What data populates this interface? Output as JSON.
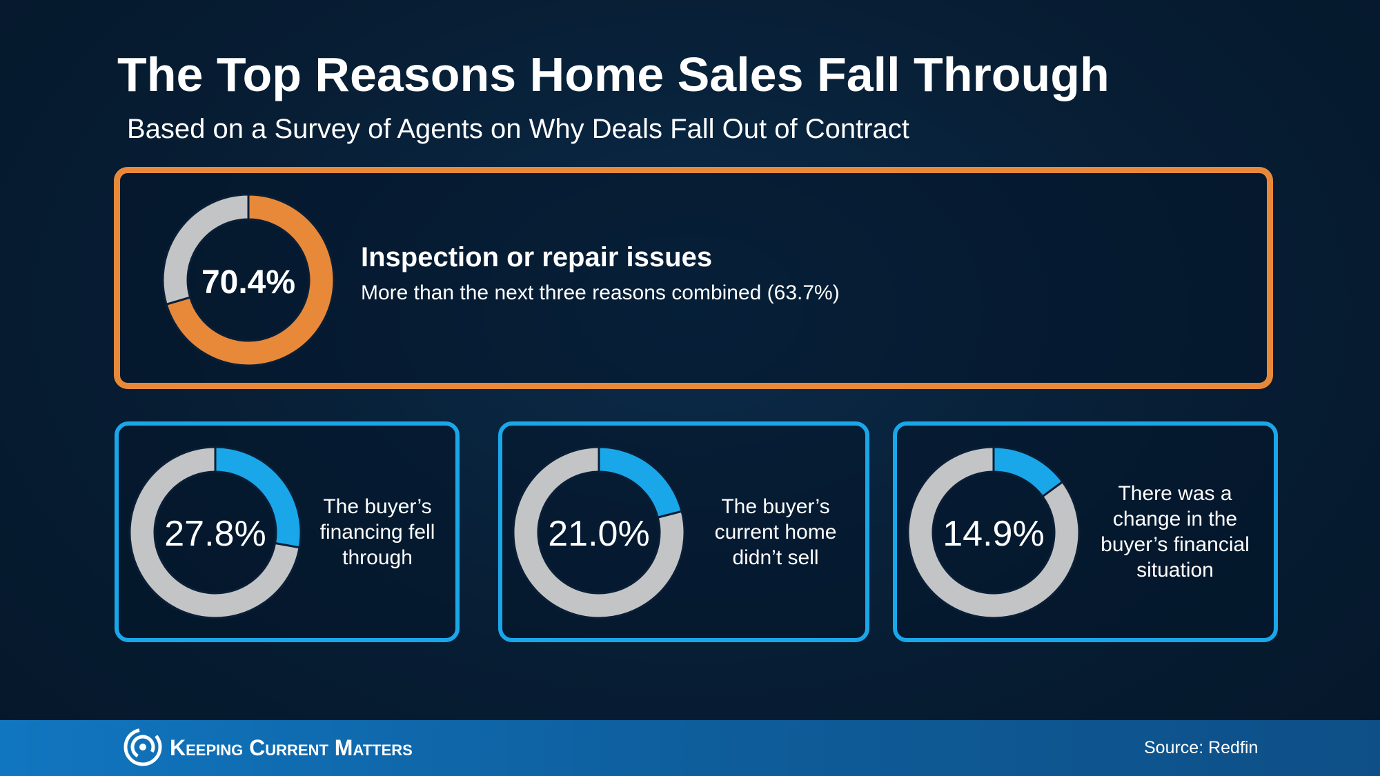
{
  "header": {
    "title": "The Top Reasons Home Sales Fall Through",
    "subtitle": "Based on a Survey of Agents on Why Deals Fall Out of Contract"
  },
  "colors": {
    "highlight": "#e8893a",
    "accent": "#1aa7ea",
    "remainder": "#c3c4c6",
    "background": "#071d33"
  },
  "chart_data": [
    {
      "type": "pie",
      "label": "Inspection or repair issues",
      "value_text": "70.4%",
      "value": 70.4,
      "note": "More than the next three reasons combined (63.7%)",
      "color": "#e8893a"
    },
    {
      "type": "pie",
      "label": "The buyer's financing fell through",
      "value_text": "27.8%",
      "value": 27.8,
      "color": "#1aa7ea"
    },
    {
      "type": "pie",
      "label": "The buyer's current home didn't sell",
      "value_text": "21.0%",
      "value": 21.0,
      "color": "#1aa7ea"
    },
    {
      "type": "pie",
      "label": "There was a change in the buyer's financial situation",
      "value_text": "14.9%",
      "value": 14.9,
      "color": "#1aa7ea"
    }
  ],
  "labels": {
    "card1": "The buyer’s financing fell through",
    "card2": "The buyer’s current home didn’t sell",
    "card3": "There was a change in the buyer’s financial situation"
  },
  "footer": {
    "brand": "Keeping Current Matters",
    "source": "Source: Redfin",
    "logo_icon": "swirl-logo-icon"
  }
}
